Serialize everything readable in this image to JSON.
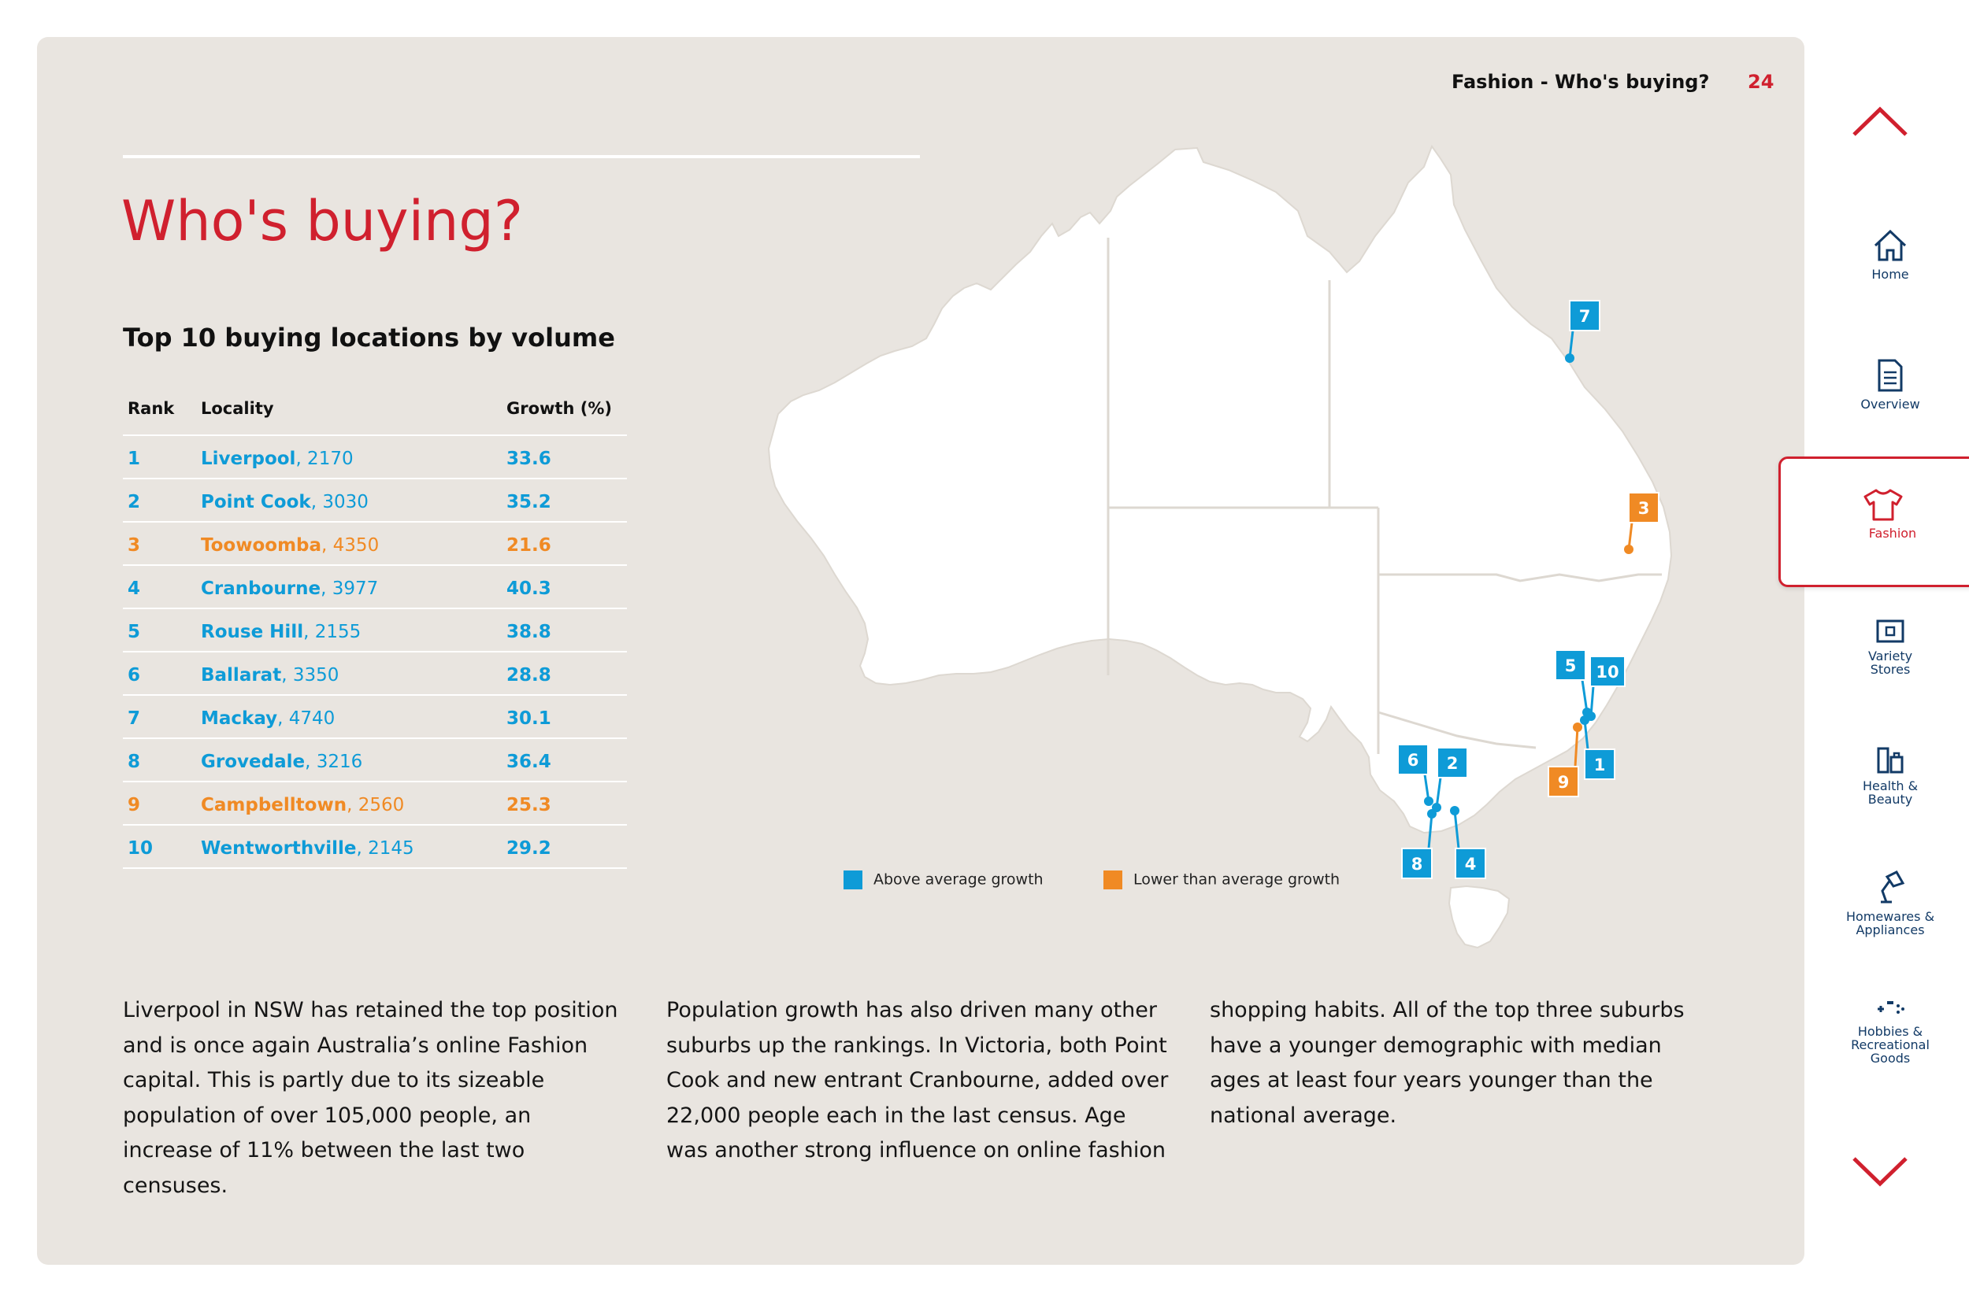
{
  "header": {
    "section": "Fashion - Who's buying?",
    "page_number": "24"
  },
  "title": "Who's buying?",
  "subtitle": "Top 10 buying locations by volume",
  "table": {
    "headers": {
      "rank": "Rank",
      "locality": "Locality",
      "growth": "Growth (%)"
    },
    "rows": [
      {
        "rank": "1",
        "name": "Liverpool",
        "postcode": ", 2170",
        "growth": "33.6",
        "status": "above"
      },
      {
        "rank": "2",
        "name": "Point Cook",
        "postcode": ", 3030",
        "growth": "35.2",
        "status": "above"
      },
      {
        "rank": "3",
        "name": "Toowoomba",
        "postcode": ", 4350",
        "growth": "21.6",
        "status": "below"
      },
      {
        "rank": "4",
        "name": "Cranbourne",
        "postcode": ", 3977",
        "growth": "40.3",
        "status": "above"
      },
      {
        "rank": "5",
        "name": "Rouse Hill",
        "postcode": ", 2155",
        "growth": "38.8",
        "status": "above"
      },
      {
        "rank": "6",
        "name": "Ballarat",
        "postcode": ", 3350",
        "growth": "28.8",
        "status": "above"
      },
      {
        "rank": "7",
        "name": "Mackay",
        "postcode": ", 4740",
        "growth": "30.1",
        "status": "above"
      },
      {
        "rank": "8",
        "name": "Grovedale",
        "postcode": ", 3216",
        "growth": "36.4",
        "status": "above"
      },
      {
        "rank": "9",
        "name": "Campbelltown",
        "postcode": ", 2560",
        "growth": "25.3",
        "status": "below"
      },
      {
        "rank": "10",
        "name": "Wentworthville",
        "postcode": ", 2145",
        "growth": "29.2",
        "status": "above"
      }
    ]
  },
  "map": {
    "flags": [
      "7",
      "3",
      "5",
      "10",
      "1",
      "9",
      "6",
      "2",
      "8",
      "4"
    ],
    "legend": {
      "above": "Above average growth",
      "below": "Lower than average growth"
    }
  },
  "colors": {
    "above": "#0e9bd7",
    "below": "#f08a24",
    "accent": "#d0202e",
    "nav": "#123a66",
    "panel": "#e9e5e0"
  },
  "body": {
    "col1": "Liverpool in NSW has retained the top position and is once again Australia’s online Fashion capital. This is partly due to its sizeable population of over 105,000 people, an increase of 11% between the last two censuses.",
    "col2": "Population growth has also driven many other suburbs up the rankings. In Victoria, both Point Cook and new entrant Cranbourne, added over 22,000 people each in the last census. Age was another strong influence on online fashion",
    "col3": "shopping habits. All of the top three suburbs have a younger demographic with median ages at least four years younger than the national average."
  },
  "nav": {
    "home": "Home",
    "overview": "Overview",
    "fashion": "Fashion",
    "variety_1": "Variety",
    "variety_2": "Stores",
    "health_1": "Health &",
    "health_2": "Beauty",
    "home_app_1": "Homewares &",
    "home_app_2": "Appliances",
    "hobbies_1": "Hobbies &",
    "hobbies_2": "Recreational",
    "hobbies_3": "Goods",
    "icons": [
      "chevron-up-icon",
      "house-icon",
      "document-icon",
      "tshirt-icon",
      "box-icon",
      "bottles-icon",
      "lamp-icon",
      "gamepad-icon",
      "chevron-down-icon"
    ]
  }
}
